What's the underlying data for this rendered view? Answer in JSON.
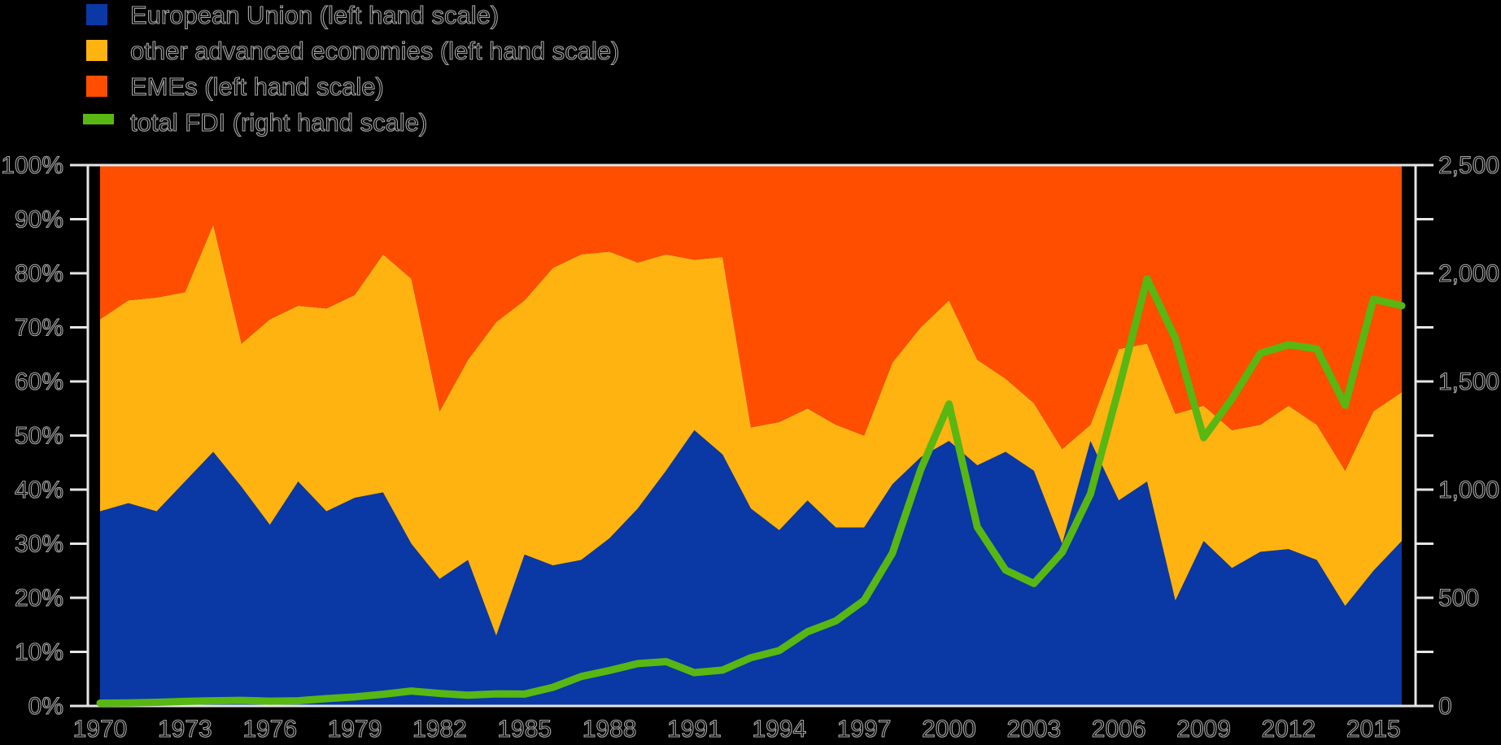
{
  "legend": {
    "items": [
      {
        "id": "eu",
        "label": "European Union (left hand scale)",
        "swatch": "square"
      },
      {
        "id": "oa",
        "label": "other advanced economies (left hand scale)",
        "swatch": "square"
      },
      {
        "id": "eme",
        "label": "EMEs (left hand scale)",
        "swatch": "square"
      },
      {
        "id": "fdi",
        "label": "total FDI (right hand scale)",
        "swatch": "line"
      }
    ]
  },
  "chart_data": {
    "type": "area",
    "subtype": "stacked-percent-area-with-line",
    "x": [
      1970,
      1971,
      1972,
      1973,
      1974,
      1975,
      1976,
      1977,
      1978,
      1979,
      1980,
      1981,
      1982,
      1983,
      1984,
      1985,
      1986,
      1987,
      1988,
      1989,
      1990,
      1991,
      1992,
      1993,
      1994,
      1995,
      1996,
      1997,
      1998,
      1999,
      2000,
      2001,
      2002,
      2003,
      2004,
      2005,
      2006,
      2007,
      2008,
      2009,
      2010,
      2011,
      2012,
      2013,
      2014,
      2015,
      2016
    ],
    "x_tick_labels": [
      "1970",
      "1973",
      "1976",
      "1979",
      "1982",
      "1985",
      "1988",
      "1991",
      "1994",
      "1997",
      "2000",
      "2003",
      "2006",
      "2009",
      "2012",
      "2015"
    ],
    "left_axis": {
      "min": 0,
      "max": 100,
      "tick_step": 10,
      "unit": "%",
      "labels": [
        "0%",
        "10%",
        "20%",
        "30%",
        "40%",
        "50%",
        "60%",
        "70%",
        "80%",
        "90%",
        "100%"
      ]
    },
    "right_axis": {
      "min": 0,
      "max": 2500,
      "tick_step": 250,
      "label_step": 500,
      "labels": [
        "0",
        "500",
        "1,000",
        "1,500",
        "2,000",
        "2,500"
      ]
    },
    "grid": false,
    "legend_position": "top-left",
    "axis_color": "#e6e6e6",
    "series": [
      {
        "name": "European Union (left hand scale)",
        "type": "area",
        "axis": "left",
        "color": "#0a38a5",
        "values": [
          36,
          37.5,
          36,
          41.5,
          47,
          40.5,
          33.5,
          41.5,
          36,
          38.5,
          39.5,
          30,
          23.5,
          27,
          13,
          28,
          26,
          27,
          31,
          36.5,
          43.5,
          51,
          46.5,
          36.5,
          32.5,
          38,
          33,
          33,
          41,
          46,
          49,
          44.5,
          47,
          43.5,
          30,
          49,
          38,
          41.5,
          19.5,
          30.5,
          25.5,
          28.5,
          29,
          27,
          18.5,
          25,
          30.5
        ]
      },
      {
        "name": "other advanced economies (left hand scale)",
        "type": "area",
        "axis": "left",
        "color": "#ffb310",
        "values": [
          35.5,
          37.5,
          39.5,
          35,
          42,
          26.5,
          38,
          32.5,
          37.5,
          37.5,
          44,
          49,
          31,
          37,
          58,
          47,
          55,
          56.5,
          53,
          45.5,
          40,
          31.5,
          36.5,
          15,
          20,
          17,
          19,
          17,
          22.5,
          24,
          26,
          19.5,
          13.5,
          12.5,
          17.5,
          3,
          28,
          25.5,
          34.5,
          25,
          25.5,
          23.5,
          26.5,
          25,
          25,
          29.5,
          27.5
        ]
      },
      {
        "name": "EMEs (left hand scale)",
        "type": "area",
        "axis": "left",
        "color": "#ff4e00",
        "values": [
          28.5,
          25,
          24.5,
          23.5,
          11,
          33,
          28.5,
          26,
          26.5,
          24,
          16.5,
          21,
          45.5,
          36,
          29,
          25,
          19,
          16.5,
          16,
          18,
          16.5,
          17.5,
          17,
          48.5,
          47.5,
          45,
          48,
          50,
          36.5,
          30,
          25,
          36,
          39.5,
          44,
          52.5,
          48,
          34,
          33,
          46,
          44.5,
          49,
          48,
          44.5,
          48,
          56.5,
          45.5,
          42
        ]
      },
      {
        "name": "total FDI (right hand scale)",
        "type": "line",
        "axis": "right",
        "color": "#58b712",
        "values": [
          13,
          14,
          17,
          21,
          24,
          26,
          22,
          24,
          34,
          42,
          54,
          69,
          58,
          50,
          56,
          55,
          86,
          136,
          164,
          196,
          205,
          154,
          166,
          223,
          256,
          343,
          393,
          488,
          706,
          1092,
          1396,
          827,
          628,
          566,
          710,
          980,
          1467,
          1974,
          1700,
          1240,
          1420,
          1630,
          1670,
          1650,
          1390,
          1880,
          1850
        ]
      }
    ],
    "stack_total": 100
  }
}
